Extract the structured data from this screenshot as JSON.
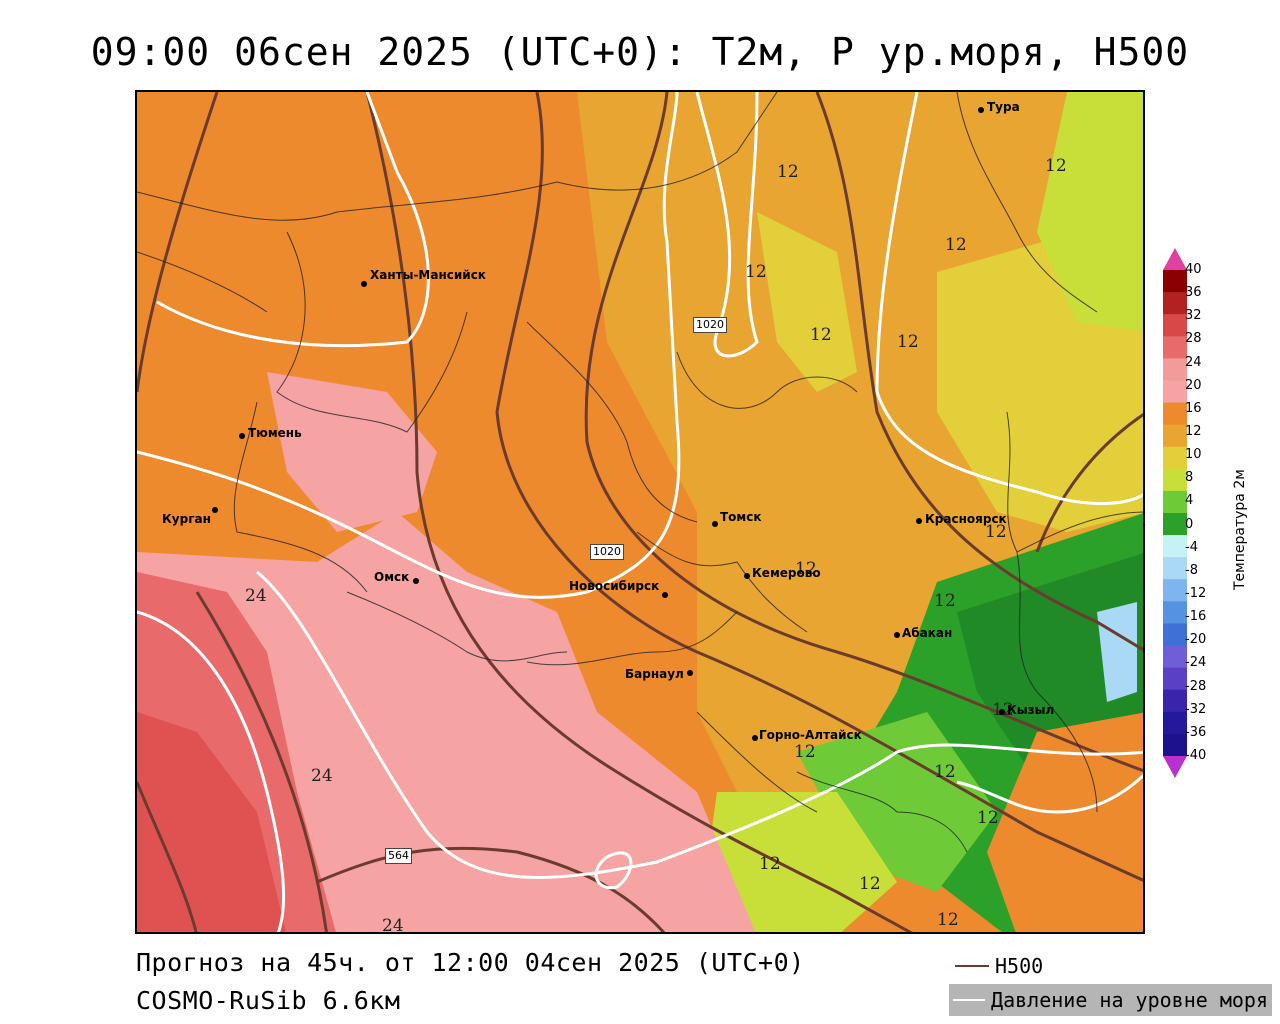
{
  "header": {
    "title": "09:00 06сен 2025 (UTC+0): T2м, P ур.моря, H500"
  },
  "footer": {
    "forecast": "Прогноз на 45ч. от 12:00 04сен 2025 (UTC+0)",
    "model": "COSMO-RuSib 6.6км"
  },
  "legend": {
    "h500_label": "H500",
    "h500_color": "#6b3b2e",
    "pressure_label": "Давление на уровне моря",
    "pressure_color": "#ffffff"
  },
  "colorbar": {
    "title": "Температура 2м",
    "ticks": [
      "40",
      "36",
      "32",
      "28",
      "24",
      "20",
      "16",
      "12",
      "10",
      "8",
      "4",
      "0",
      "-4",
      "-8",
      "-12",
      "-16",
      "-20",
      "-24",
      "-28",
      "-32",
      "-36",
      "-40"
    ],
    "colors": [
      "#8b0000",
      "#b22222",
      "#d84848",
      "#e86a6a",
      "#f39a9a",
      "#f5a3a3",
      "#ee8a2e",
      "#e8a531",
      "#e3cf3a",
      "#c8df3a",
      "#6ecb37",
      "#2ca12a",
      "#c5f2f5",
      "#a9d9f5",
      "#7fb5ee",
      "#5592e0",
      "#3e70d6",
      "#6e5fd6",
      "#5a40c4",
      "#3a24ac",
      "#23199a",
      "#1d128c"
    ],
    "top_arrow": "#e040a0",
    "bottom_arrow": "#b830d0"
  },
  "cities": [
    {
      "name": "Тура"
    },
    {
      "name": "Ханты-Мансийск"
    },
    {
      "name": "Тюмень"
    },
    {
      "name": "Курган"
    },
    {
      "name": "Омск"
    },
    {
      "name": "Новосибирск"
    },
    {
      "name": "Томск"
    },
    {
      "name": "Кемерово"
    },
    {
      "name": "Красноярск"
    },
    {
      "name": "Абакан"
    },
    {
      "name": "Барнаул"
    },
    {
      "name": "Горно-Алтайск"
    },
    {
      "name": "Кызыл"
    }
  ],
  "contour_labels": {
    "pressure": [
      "1020",
      "1020"
    ],
    "height": [
      "564"
    ],
    "temperature": [
      "12",
      "12",
      "12",
      "12",
      "12",
      "12",
      "12",
      "12",
      "12",
      "12",
      "12",
      "12",
      "12",
      "12",
      "12",
      "12",
      "24",
      "24",
      "24"
    ]
  }
}
